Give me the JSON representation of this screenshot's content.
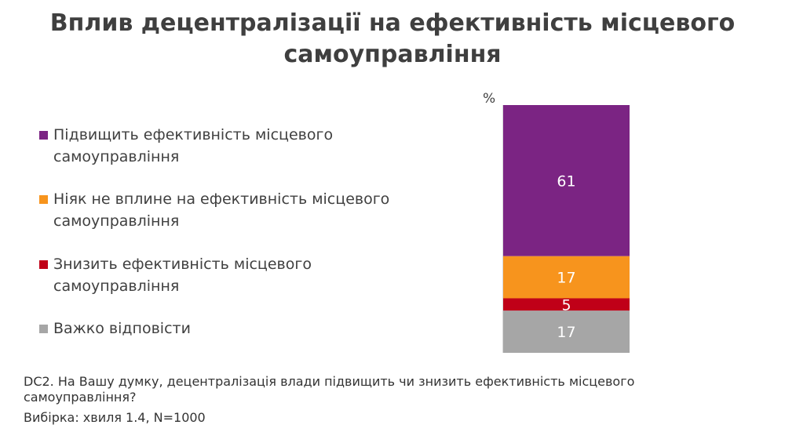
{
  "title": {
    "line1": "Вплив децентралізації на ефективність місцевого",
    "line2": "самоуправління"
  },
  "chart_data": {
    "type": "bar",
    "stacked": true,
    "unit": "%",
    "categories": [
      ""
    ],
    "series": [
      {
        "name": "Підвищить ефективність місцевого самоуправління",
        "values": [
          61
        ],
        "color": "#7b2483"
      },
      {
        "name": "Ніяк не вплине на ефективність місцевого самоуправління",
        "values": [
          17
        ],
        "color": "#f7941d"
      },
      {
        "name": "Знизить ефективність місцевого самоуправління",
        "values": [
          5
        ],
        "color": "#c00018"
      },
      {
        "name": "Важко відповісти",
        "values": [
          17
        ],
        "color": "#a6a6a6"
      }
    ],
    "ylim": [
      0,
      100
    ],
    "legend": "left"
  },
  "legend_lines": [
    [
      "Підвищить ефективність місцевого",
      "самоуправління"
    ],
    [
      "Ніяк не вплине на ефективність місцевого",
      "самоуправління"
    ],
    [
      "Знизить ефективність місцевого",
      "самоуправління"
    ],
    [
      "Важко відповісти"
    ]
  ],
  "footnote": {
    "question_line1": "DC2. На Вашу думку, децентралізація влади підвищить чи знизить ефективність місцевого",
    "question_line2": "самоуправління?",
    "sample": "Вибірка: хвиля 1.4, N=1000"
  }
}
